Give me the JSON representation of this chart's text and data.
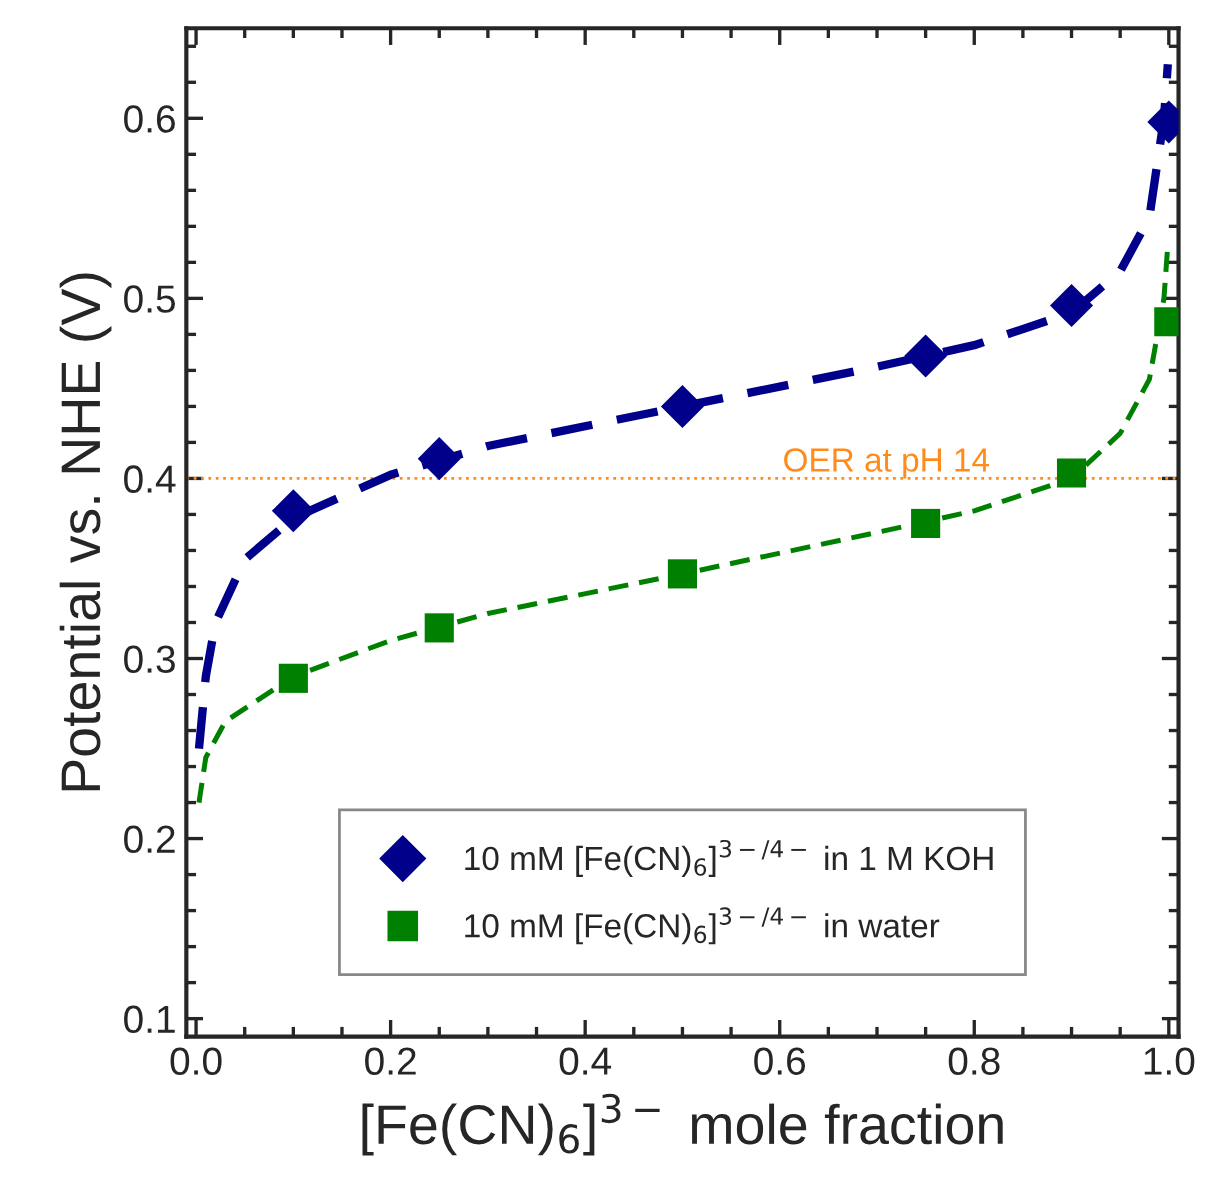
{
  "chart_data": {
    "type": "scatter",
    "xlabel": "[Fe(CN)$_{6}$]$^{3−}$ mole fraction",
    "ylabel": "Potential vs. NHE (V)",
    "series": [
      {
        "name": "10 mM [Fe(CN)$_{6}$]$^{3−/4−}$ in 1 M KOH",
        "marker": "diamond",
        "color": "#00008b",
        "x": [
          0.1,
          0.25,
          0.5,
          0.75,
          0.9,
          1.0
        ],
        "values": [
          0.382,
          0.411,
          0.44,
          0.468,
          0.496,
          0.598
        ]
      },
      {
        "name": "10 mM [Fe(CN)$_{6}$]$^{3−/4−}$ in water",
        "marker": "square",
        "color": "#008000",
        "x": [
          0.1,
          0.25,
          0.5,
          0.75,
          0.9,
          1.0
        ],
        "values": [
          0.289,
          0.317,
          0.347,
          0.375,
          0.403,
          0.487
        ]
      },
      {
        "type": "line",
        "line_style": "dashed",
        "color": "#00008b",
        "x": [
          0.003,
          0.01,
          0.02,
          0.05,
          0.1,
          0.2,
          0.3,
          0.5,
          0.7,
          0.8,
          0.9,
          0.95,
          0.98,
          0.995,
          0.999
        ],
        "values": [
          0.25,
          0.29,
          0.32,
          0.355,
          0.378,
          0.402,
          0.418,
          0.44,
          0.462,
          0.474,
          0.492,
          0.515,
          0.545,
          0.6,
          0.63
        ]
      },
      {
        "type": "line",
        "line_style": "dashed",
        "color": "#008000",
        "x": [
          0.003,
          0.01,
          0.03,
          0.1,
          0.2,
          0.3,
          0.5,
          0.7,
          0.8,
          0.9,
          0.95,
          0.98,
          0.995,
          0.999
        ],
        "values": [
          0.22,
          0.245,
          0.265,
          0.29,
          0.31,
          0.325,
          0.347,
          0.37,
          0.382,
          0.4,
          0.425,
          0.455,
          0.5,
          0.53
        ]
      }
    ],
    "ref_lines": [
      {
        "axis": "y",
        "value": 0.4,
        "label": "OER at pH 14",
        "color": "#ff8c1a",
        "line_style": "dotted"
      }
    ],
    "xlim": [
      -0.01,
      1.01
    ],
    "ylim": [
      0.09,
      0.65
    ],
    "xticks": [
      {
        "value": 0.0,
        "label": "0.0"
      },
      0.2,
      0.4,
      0.6,
      0.8,
      {
        "value": 1.0,
        "label": "1.0"
      }
    ],
    "yticks": [
      0.1,
      0.2,
      0.3,
      0.4,
      0.5,
      0.6
    ],
    "grid": false,
    "legend": "bottom"
  }
}
